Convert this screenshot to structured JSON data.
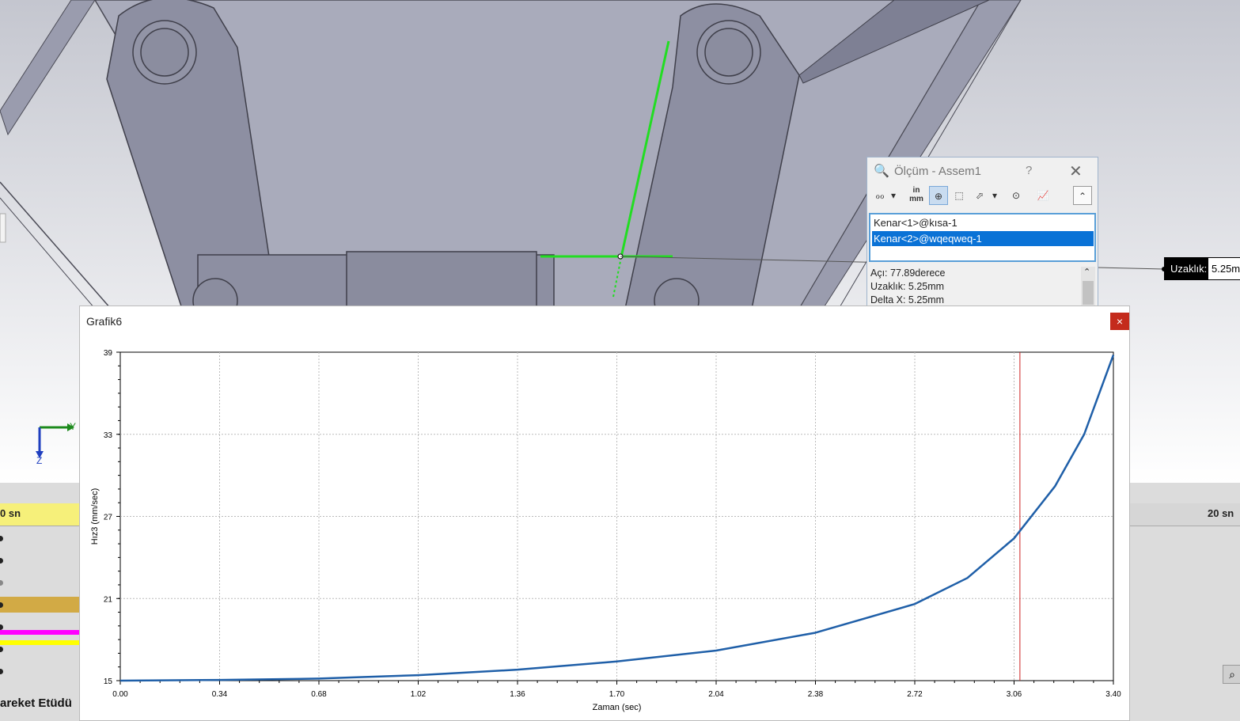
{
  "app": {
    "timeline": {
      "ruler_left_label": "0 sn",
      "ruler_right_label": "20 sn",
      "status_label": "areket Etüdü"
    }
  },
  "measure": {
    "title": "Ölçüm - Assem1",
    "help": "?",
    "close": "✕",
    "selections": [
      "Kenar<1>@kısa-1",
      "Kenar<2>@wqeqweq-1"
    ],
    "selected_index": 1,
    "results": [
      "Açı: 77.89derece",
      "Uzaklık: 5.25mm",
      "Delta X: 5.25mm"
    ],
    "toolbar": {
      "units_label": "in\nmm"
    }
  },
  "callout": {
    "label": "Uzaklık:",
    "value": "5.25m"
  },
  "graph_window": {
    "title": "Grafik6",
    "close": "×"
  },
  "triad": {
    "y": "Y",
    "z": "Z",
    "x": "X"
  },
  "chart_data": {
    "type": "line",
    "title": "",
    "xlabel": "Zaman (sec)",
    "ylabel": "Hız3 (mm/sec)",
    "xlim": [
      0,
      3.4
    ],
    "ylim": [
      15,
      39
    ],
    "xticks": [
      "0.00",
      "0.34",
      "0.68",
      "1.02",
      "1.36",
      "1.70",
      "2.04",
      "2.38",
      "2.72",
      "3.06",
      "3.40"
    ],
    "yticks": [
      "15",
      "21",
      "27",
      "33",
      "39"
    ],
    "grid": true,
    "cursor_x": 3.08,
    "series": [
      {
        "color": "#1f5fa8",
        "x": [
          0,
          0.34,
          0.68,
          1.02,
          1.36,
          1.7,
          2.04,
          2.38,
          2.72,
          2.9,
          3.06,
          3.2,
          3.3,
          3.4
        ],
        "y": [
          15.0,
          15.05,
          15.15,
          15.4,
          15.8,
          16.4,
          17.2,
          18.5,
          20.6,
          22.5,
          25.4,
          29.2,
          33.0,
          38.8
        ]
      }
    ]
  }
}
